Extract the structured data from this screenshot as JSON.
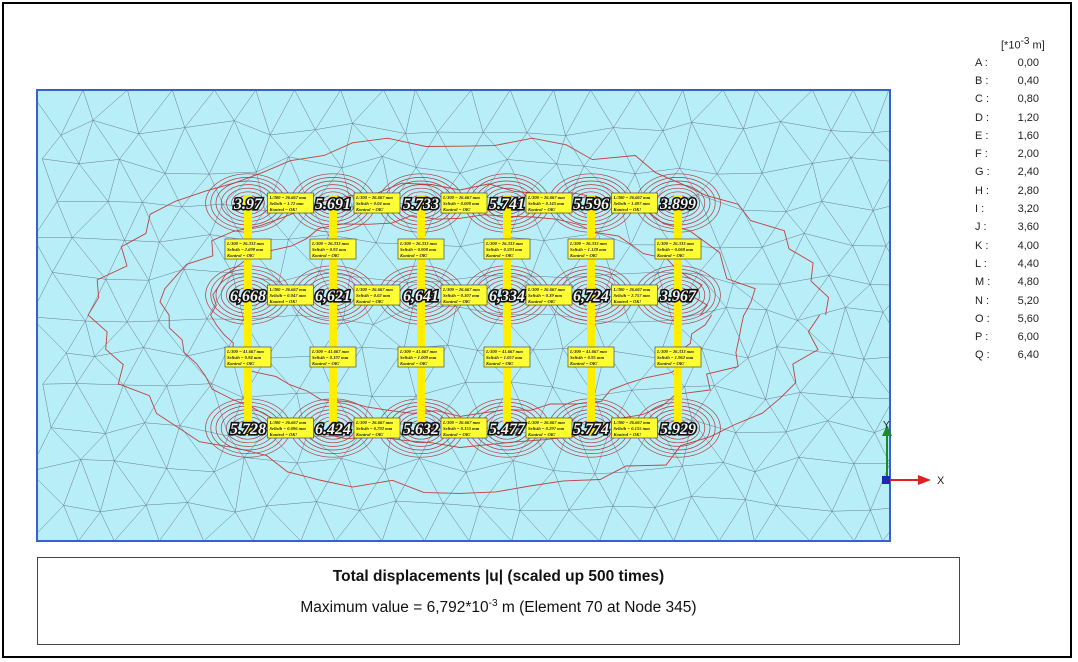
{
  "legend": {
    "unit_prefix": "[*10",
    "unit_exp": "-3",
    "unit_suffix": " m]",
    "entries": [
      {
        "key": "A :",
        "value": "0,00"
      },
      {
        "key": "B :",
        "value": "0,40"
      },
      {
        "key": "C :",
        "value": "0,80"
      },
      {
        "key": "D :",
        "value": "1,20"
      },
      {
        "key": "E :",
        "value": "1,60"
      },
      {
        "key": "F :",
        "value": "2,00"
      },
      {
        "key": "G :",
        "value": "2,40"
      },
      {
        "key": "H :",
        "value": "2,80"
      },
      {
        "key": "I :",
        "value": "3,20"
      },
      {
        "key": "J :",
        "value": "3,60"
      },
      {
        "key": "K :",
        "value": "4,00"
      },
      {
        "key": "L :",
        "value": "4,40"
      },
      {
        "key": "M :",
        "value": "4,80"
      },
      {
        "key": "N :",
        "value": "5,20"
      },
      {
        "key": "O :",
        "value": "5,60"
      },
      {
        "key": "P :",
        "value": "6,00"
      },
      {
        "key": "Q :",
        "value": "6,40"
      }
    ]
  },
  "caption": {
    "title": "Total displacements |u| (scaled up 500 times)",
    "max_prefix": "Maximum value = 6,792*10",
    "max_exp": "-3",
    "max_suffix": " m (Element 70 at Node 345)"
  },
  "axes": {
    "y": "Y",
    "x": "X"
  },
  "columns": [
    {
      "col": 1,
      "top": "3.97",
      "mid": "6,668",
      "bot": "5.728"
    },
    {
      "col": 2,
      "top": "5.691",
      "mid": "6,621",
      "bot": "6.424"
    },
    {
      "col": 3,
      "top": "5.733",
      "mid": "6,641",
      "bot": "5.632"
    },
    {
      "col": 4,
      "top": "5.741",
      "mid": "6,334",
      "bot": "5.477"
    },
    {
      "col": 5,
      "top": "5.596",
      "mid": "6,724",
      "bot": "5.774"
    },
    {
      "col": 6,
      "top": "3.899",
      "mid": "3.967",
      "bot": "5.929"
    }
  ],
  "checks": {
    "horizontal": [
      [
        "L/300 = 26.667 mm",
        "Selisih = 1.72 mm",
        "Kontrol = OK!"
      ],
      [
        "L/300 = 26.667 mm",
        "Selisih = 0.04 mm",
        "Kontrol = OK!"
      ],
      [
        "L/300 = 26.667 mm",
        "Selisih = 0.008 mm",
        "Kontrol = OK!"
      ],
      [
        "L/300 = 26.667 mm",
        "Selisih = 0.145 mm",
        "Kontrol = OK!"
      ],
      [
        "L/300 = 26.667 mm",
        "Selisih = 1.697 mm",
        "Kontrol = OK!"
      ],
      [
        "L/300 = 26.667 mm",
        "Selisih = 0.047 mm",
        "Kontrol = OK!"
      ],
      [
        "L/300 = 26.667 mm",
        "Selisih = 0.02 mm",
        "Kontrol = OK!"
      ],
      [
        "L/300 = 26.667 mm",
        "Selisih = 0.307 mm",
        "Kontrol = OK!"
      ],
      [
        "L/300 = 26.667 mm",
        "Selisih = 0.39 mm",
        "Kontrol = OK!"
      ],
      [
        "L/300 = 26.667 mm",
        "Selisih = 2.757 mm",
        "Kontrol = OK!"
      ],
      [
        "L/300 = 26.667 mm",
        "Selisih = 0.696 mm",
        "Kontrol = OK!"
      ],
      [
        "L/300 = 26.667 mm",
        "Selisih = 0.792 mm",
        "Kontrol = OK!"
      ],
      [
        "L/300 = 26.667 mm",
        "Selisih = 0.155 mm",
        "Kontrol = OK!"
      ],
      [
        "L/300 = 26.667 mm",
        "Selisih = 0.297 mm",
        "Kontrol = OK!"
      ],
      [
        "L/300 = 26.667 mm",
        "Selisih = 0.155 mm",
        "Kontrol = OK!"
      ]
    ],
    "vertical": [
      [
        "L/300 = 26.333 mm",
        "Selisih = 2.698 mm",
        "Kontrol = OK!"
      ],
      [
        "L/300 = 26.333 mm",
        "Selisih = 0.93 mm",
        "Kontrol = OK!"
      ],
      [
        "L/300 = 26.333 mm",
        "Selisih = 0.908 mm",
        "Kontrol = OK!"
      ],
      [
        "L/300 = 26.333 mm",
        "Selisih = 0.593 mm",
        "Kontrol = OK!"
      ],
      [
        "L/300 = 26.333 mm",
        "Selisih = 1.128 mm",
        "Kontrol = OK!"
      ],
      [
        "L/300 = 26.333 mm",
        "Selisih = 0.068 mm",
        "Kontrol = OK!"
      ],
      [
        "L/300 = 41.667 mm",
        "Selisih = 0.94 mm",
        "Kontrol = OK!"
      ],
      [
        "L/300 = 41.667 mm",
        "Selisih = 0.197 mm",
        "Kontrol = OK!"
      ],
      [
        "L/300 = 41.667 mm",
        "Selisih = 1.009 mm",
        "Kontrol = OK!"
      ],
      [
        "L/300 = 41.667 mm",
        "Selisih = 1.057 mm",
        "Kontrol = OK!"
      ],
      [
        "L/300 = 41.667 mm",
        "Selisih = 0.95 mm",
        "Kontrol = OK!"
      ],
      [
        "L/300 = 26.333 mm",
        "Selisih = 1.962 mm",
        "Kontrol = OK!"
      ]
    ]
  },
  "colors": {
    "fill": "#b7eef7",
    "mesh": "#6a7a92",
    "contour": "#c44040",
    "border": "#3a5ed6",
    "beam": "#ffee00",
    "label_bg": "#ffff33",
    "axis_y": "#1a8a2a",
    "axis_x": "#e02020",
    "origin": "#1a2ab5"
  }
}
